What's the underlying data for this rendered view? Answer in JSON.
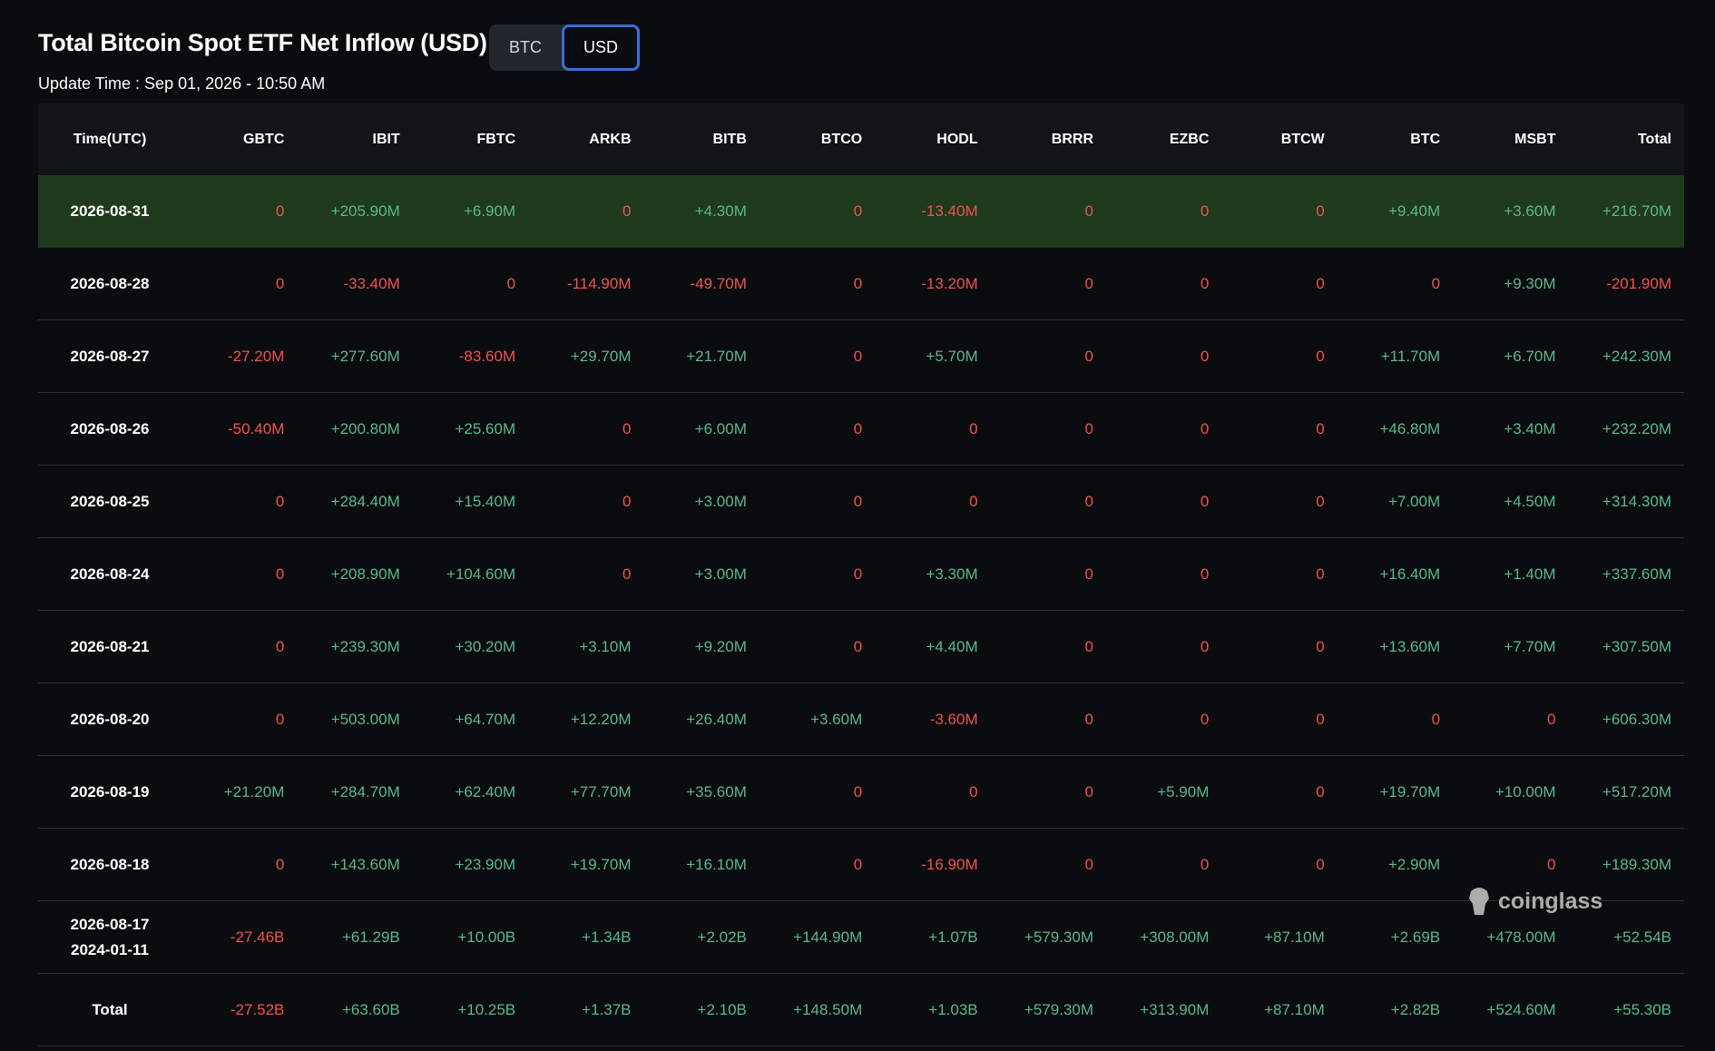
{
  "header": {
    "title": "Total Bitcoin Spot ETF Net Inflow (USD)",
    "toggle": [
      "BTC",
      "USD"
    ],
    "toggle_selected": 1,
    "update_time": "Update Time : Sep 01, 2026 - 10:50 AM"
  },
  "table": {
    "columns": [
      "Time(UTC)",
      "GBTC",
      "IBIT",
      "FBTC",
      "ARKB",
      "BITB",
      "BTCO",
      "HODL",
      "BRRR",
      "EZBC",
      "BTCW",
      "BTC",
      "MSBT",
      "Total"
    ],
    "highlight_row": 0,
    "colors": {
      "up": "#5cb88c",
      "down": "#f0524f",
      "highlight": "#1f3a1c"
    },
    "rows": [
      [
        "2026-08-31",
        "0",
        "+205.90M",
        "+6.90M",
        "0",
        "+4.30M",
        "0",
        "-13.40M",
        "0",
        "0",
        "0",
        "+9.40M",
        "+3.60M",
        "+216.70M"
      ],
      [
        "2026-08-28",
        "0",
        "-33.40M",
        "0",
        "-114.90M",
        "-49.70M",
        "0",
        "-13.20M",
        "0",
        "0",
        "0",
        "0",
        "+9.30M",
        "-201.90M"
      ],
      [
        "2026-08-27",
        "-27.20M",
        "+277.60M",
        "-83.60M",
        "+29.70M",
        "+21.70M",
        "0",
        "+5.70M",
        "0",
        "0",
        "0",
        "+11.70M",
        "+6.70M",
        "+242.30M"
      ],
      [
        "2026-08-26",
        "-50.40M",
        "+200.80M",
        "+25.60M",
        "0",
        "+6.00M",
        "0",
        "0",
        "0",
        "0",
        "0",
        "+46.80M",
        "+3.40M",
        "+232.20M"
      ],
      [
        "2026-08-25",
        "0",
        "+284.40M",
        "+15.40M",
        "0",
        "+3.00M",
        "0",
        "0",
        "0",
        "0",
        "0",
        "+7.00M",
        "+4.50M",
        "+314.30M"
      ],
      [
        "2026-08-24",
        "0",
        "+208.90M",
        "+104.60M",
        "0",
        "+3.00M",
        "0",
        "+3.30M",
        "0",
        "0",
        "0",
        "+16.40M",
        "+1.40M",
        "+337.60M"
      ],
      [
        "2026-08-21",
        "0",
        "+239.30M",
        "+30.20M",
        "+3.10M",
        "+9.20M",
        "0",
        "+4.40M",
        "0",
        "0",
        "0",
        "+13.60M",
        "+7.70M",
        "+307.50M"
      ],
      [
        "2026-08-20",
        "0",
        "+503.00M",
        "+64.70M",
        "+12.20M",
        "+26.40M",
        "+3.60M",
        "-3.60M",
        "0",
        "0",
        "0",
        "0",
        "0",
        "+606.30M"
      ],
      [
        "2026-08-19",
        "+21.20M",
        "+284.70M",
        "+62.40M",
        "+77.70M",
        "+35.60M",
        "0",
        "0",
        "0",
        "+5.90M",
        "0",
        "+19.70M",
        "+10.00M",
        "+517.20M"
      ],
      [
        "2026-08-18",
        "0",
        "+143.60M",
        "+23.90M",
        "+19.70M",
        "+16.10M",
        "0",
        "-16.90M",
        "0",
        "0",
        "0",
        "+2.90M",
        "0",
        "+189.30M"
      ],
      [
        [
          "2026-08-17",
          "2024-01-11"
        ],
        "-27.46B",
        "+61.29B",
        "+10.00B",
        "+1.34B",
        "+2.02B",
        "+144.90M",
        "+1.07B",
        "+579.30M",
        "+308.00M",
        "+87.10M",
        "+2.69B",
        "+478.00M",
        "+52.54B"
      ],
      [
        "Total",
        "-27.52B",
        "+63.60B",
        "+10.25B",
        "+1.37B",
        "+2.10B",
        "+148.50M",
        "+1.03B",
        "+579.30M",
        "+313.90M",
        "+87.10M",
        "+2.82B",
        "+524.60M",
        "+55.30B"
      ]
    ]
  },
  "watermark": "coinglass"
}
